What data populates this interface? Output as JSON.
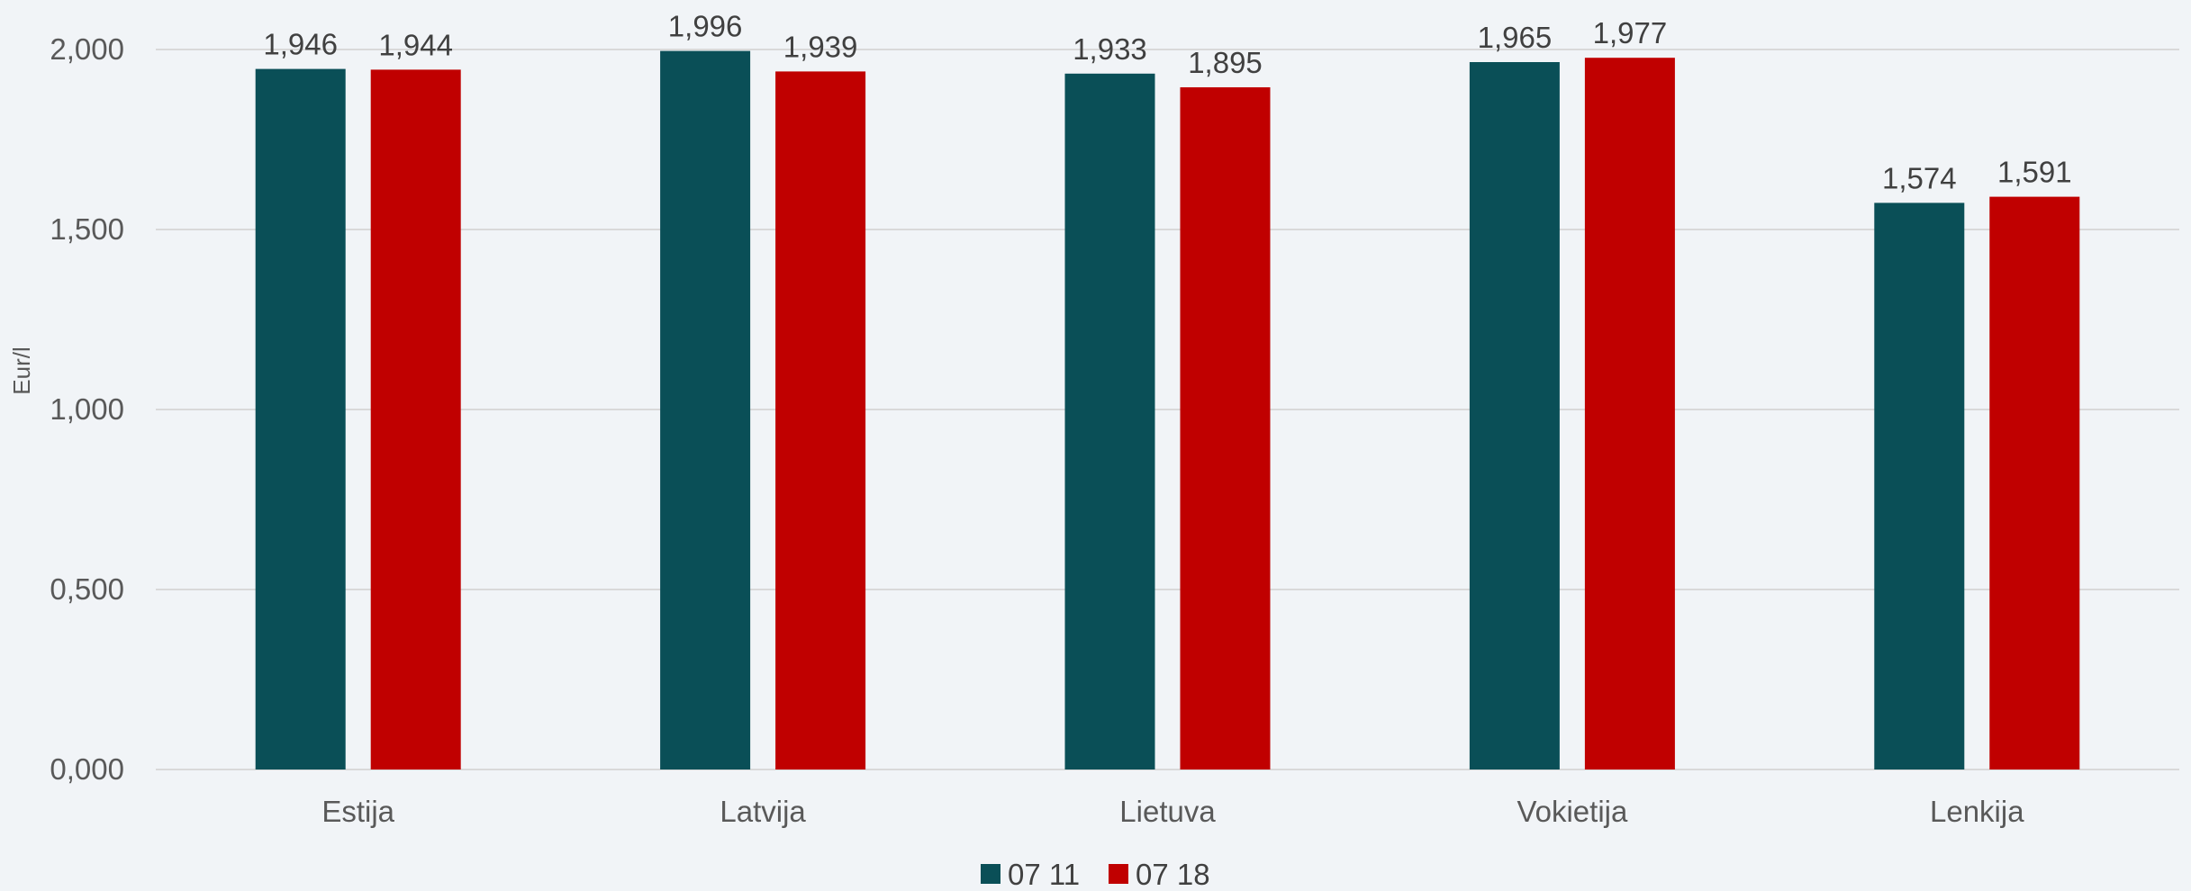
{
  "chart_data": {
    "type": "bar",
    "title": "",
    "xlabel": "",
    "ylabel": "Eur/l",
    "ylim": [
      0,
      2
    ],
    "yticks": [
      "0,000",
      "0,500",
      "1,000",
      "1,500",
      "2,000"
    ],
    "grid": true,
    "legend_position": "bottom",
    "categories": [
      "Estija",
      "Latvija",
      "Lietuva",
      "Vokietija",
      "Lenkija"
    ],
    "series": [
      {
        "name": "07 11",
        "color": "#0a4f57",
        "values": [
          1.946,
          1.996,
          1.933,
          1.965,
          1.574
        ],
        "labels": [
          "1,946",
          "1,996",
          "1,933",
          "1,965",
          "1,574"
        ]
      },
      {
        "name": "07 18",
        "color": "#c00000",
        "values": [
          1.944,
          1.939,
          1.895,
          1.977,
          1.591
        ],
        "labels": [
          "1,944",
          "1,939",
          "1,895",
          "1,977",
          "1,591"
        ]
      }
    ]
  }
}
